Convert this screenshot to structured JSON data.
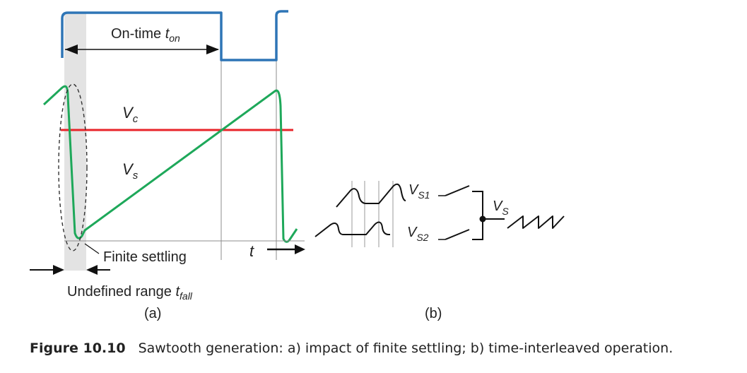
{
  "colors": {
    "gate": "#2e75b6",
    "vc": "#e8242a",
    "vs": "#1ea85a",
    "axis": "#111111",
    "shade": "#e3e3e3",
    "grid": "#8c8c8c",
    "text": "#222222"
  },
  "panel_a": {
    "on_time_label": "On-time",
    "on_time_symbol": "t",
    "on_time_subscript": "on",
    "vc_symbol": "V",
    "vc_subscript": "c",
    "vs_symbol": "V",
    "vs_subscript": "s",
    "t_axis_label": "t",
    "finite_settling": "Finite settling",
    "undefined_range_label": "Undefined range",
    "undefined_range_symbol": "t",
    "undefined_range_subscript": "fall",
    "panel_label": "(a)"
  },
  "panel_b": {
    "vs1_symbol": "V",
    "vs1_subscript": "S1",
    "vs2_symbol": "V",
    "vs2_subscript": "S2",
    "vs_symbol": "V",
    "vs_subscript": "S",
    "panel_label": "(b)"
  },
  "caption": {
    "number": "Figure 10.10",
    "text": "Sawtooth generation: a) impact of finite settling; b) time-interleaved operation."
  }
}
